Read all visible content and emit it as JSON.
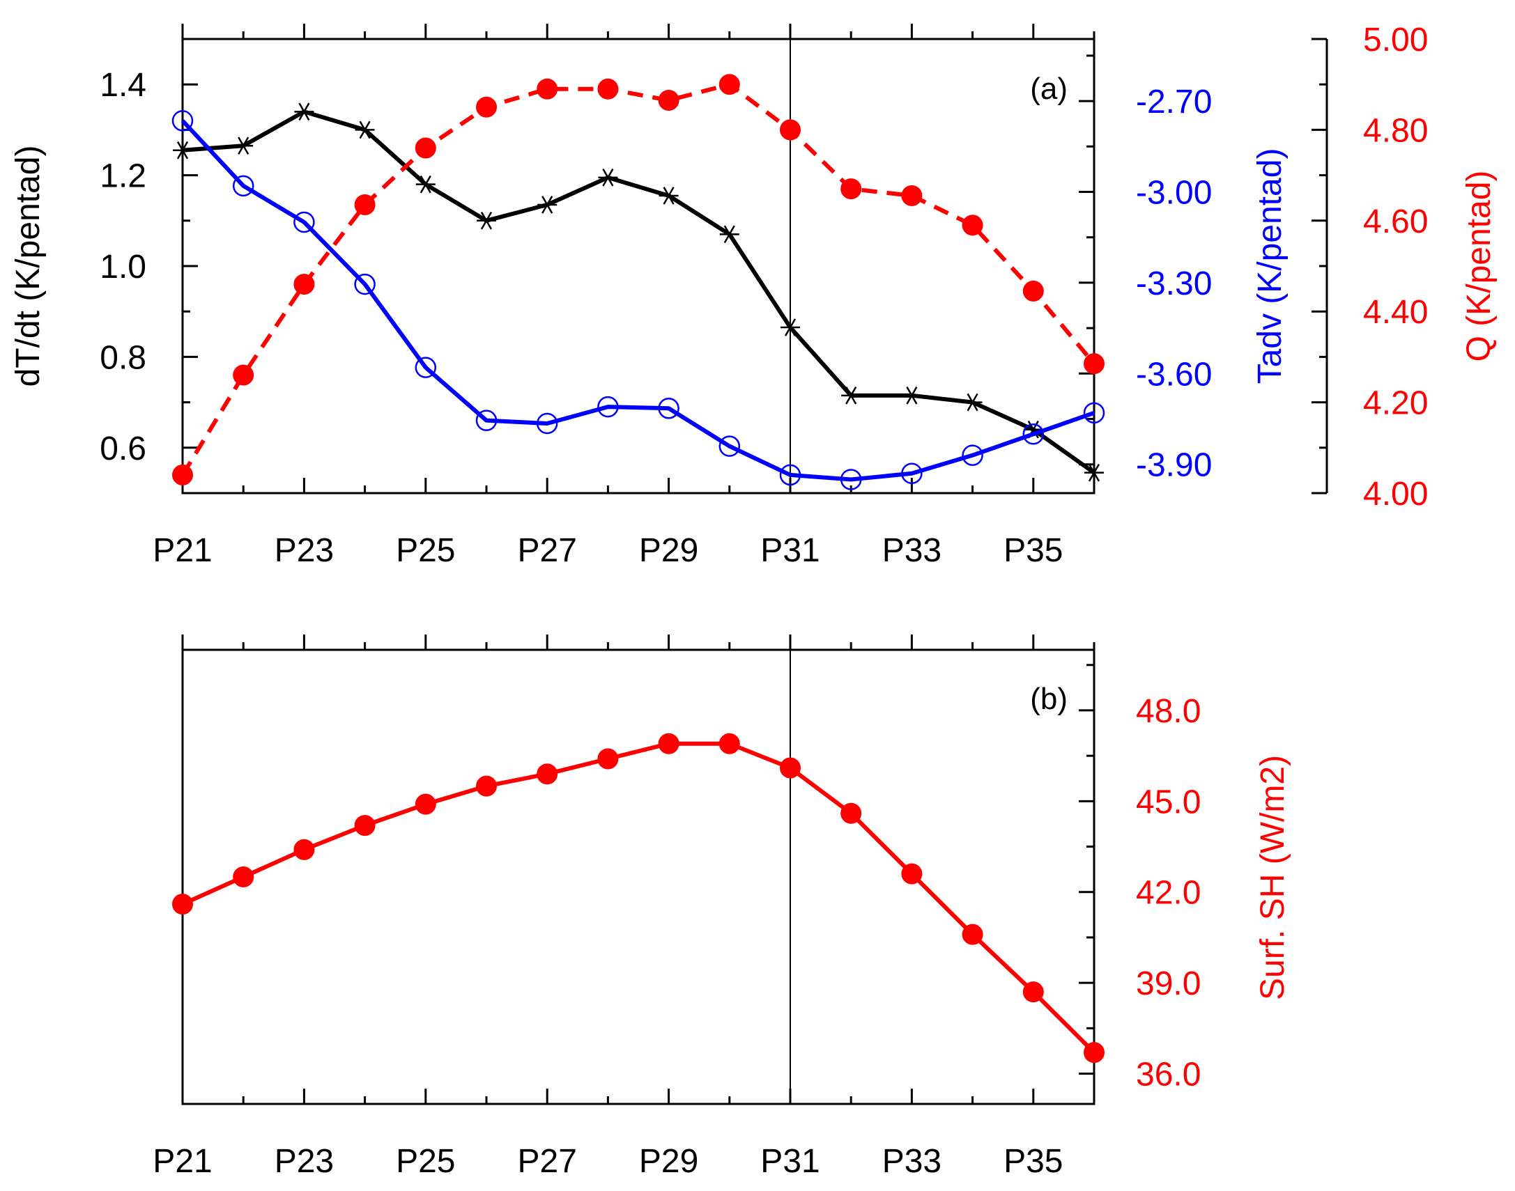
{
  "chart_data": [
    {
      "panel_label": "(a)",
      "type": "line",
      "x_categories": [
        "P21",
        "P22",
        "P23",
        "P24",
        "P25",
        "P26",
        "P27",
        "P28",
        "P29",
        "P30",
        "P31",
        "P32",
        "P33",
        "P34",
        "P35",
        "P36"
      ],
      "x_tick_labels": [
        "P21",
        "P23",
        "P25",
        "P27",
        "P29",
        "P31",
        "P33",
        "P35"
      ],
      "reference_line_x": "P31",
      "axes": {
        "left": {
          "label": "dT/dt (K/pentad)",
          "range": [
            0.5,
            1.5
          ],
          "major_ticks": [
            0.6,
            0.8,
            1.0,
            1.2,
            1.4
          ],
          "tick_labels": [
            "0.6",
            "0.8",
            "1.0",
            "1.2",
            "1.4"
          ],
          "color": "#000000"
        },
        "right_inner": {
          "label": "Tadv (K/pentad)",
          "range": [
            -3.995,
            -2.495
          ],
          "major_ticks": [
            -3.9,
            -3.6,
            -3.3,
            -3.0,
            -2.7
          ],
          "tick_labels": [
            "-3.90",
            "-3.60",
            "-3.30",
            "-3.00",
            "-2.70"
          ],
          "color": "#0000ff"
        },
        "right_outer": {
          "label": "Q (K/pentad)",
          "range": [
            4.0,
            5.0
          ],
          "major_ticks": [
            4.0,
            4.2,
            4.4,
            4.6,
            4.8,
            5.0
          ],
          "tick_labels": [
            "4.00",
            "4.20",
            "4.40",
            "4.60",
            "4.80",
            "5.00"
          ],
          "color": "#ff0000"
        }
      },
      "series": [
        {
          "name": "dT/dt",
          "axis": "left",
          "color": "#000000",
          "marker": "asterisk",
          "line_style": "solid",
          "values": [
            1.255,
            1.265,
            1.34,
            1.3,
            1.18,
            1.1,
            1.135,
            1.195,
            1.155,
            1.07,
            0.865,
            0.715,
            0.715,
            0.7,
            0.64,
            0.545
          ]
        },
        {
          "name": "Tadv",
          "axis": "right_inner",
          "color": "#0000ff",
          "marker": "hollow-circle",
          "line_style": "solid",
          "values": [
            -2.765,
            -2.98,
            -3.1,
            -3.305,
            -3.58,
            -3.755,
            -3.765,
            -3.71,
            -3.715,
            -3.84,
            -3.935,
            -3.95,
            -3.93,
            -3.87,
            -3.8,
            -3.73
          ]
        },
        {
          "name": "Q",
          "axis": "right_outer",
          "color": "#ff0000",
          "marker": "filled-circle",
          "line_style": "dashed",
          "values": [
            4.04,
            4.26,
            4.46,
            4.635,
            4.76,
            4.85,
            4.89,
            4.89,
            4.865,
            4.9,
            4.8,
            4.67,
            4.655,
            4.59,
            4.445,
            4.285
          ]
        }
      ]
    },
    {
      "panel_label": "(b)",
      "type": "line",
      "x_categories": [
        "P21",
        "P22",
        "P23",
        "P24",
        "P25",
        "P26",
        "P27",
        "P28",
        "P29",
        "P30",
        "P31",
        "P32",
        "P33",
        "P34",
        "P35",
        "P36"
      ],
      "x_tick_labels": [
        "P21",
        "P23",
        "P25",
        "P27",
        "P29",
        "P31",
        "P33",
        "P35"
      ],
      "reference_line_x": "P31",
      "axes": {
        "right": {
          "label": "Surf. SH (W/m2)",
          "range": [
            35.0,
            50.0
          ],
          "major_ticks": [
            36.0,
            39.0,
            42.0,
            45.0,
            48.0
          ],
          "tick_labels": [
            "36.0",
            "39.0",
            "42.0",
            "45.0",
            "48.0"
          ],
          "color": "#ff0000"
        }
      },
      "series": [
        {
          "name": "Surf. SH",
          "axis": "right",
          "color": "#ff0000",
          "marker": "filled-circle",
          "line_style": "solid",
          "values": [
            41.6,
            42.5,
            43.4,
            44.2,
            44.9,
            45.5,
            45.9,
            46.4,
            46.9,
            46.9,
            46.1,
            44.6,
            42.6,
            40.6,
            38.7,
            36.7
          ]
        }
      ]
    }
  ]
}
